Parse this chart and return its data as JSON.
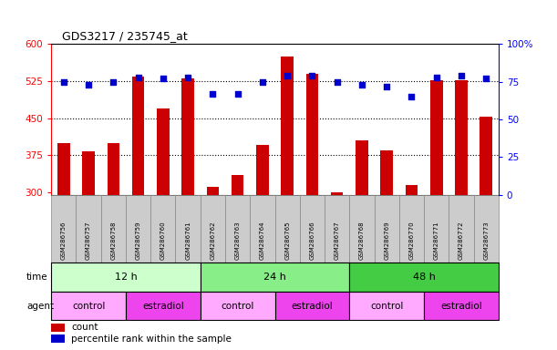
{
  "title": "GDS3217 / 235745_at",
  "samples": [
    "GSM286756",
    "GSM286757",
    "GSM286758",
    "GSM286759",
    "GSM286760",
    "GSM286761",
    "GSM286762",
    "GSM286763",
    "GSM286764",
    "GSM286765",
    "GSM286766",
    "GSM286767",
    "GSM286768",
    "GSM286769",
    "GSM286770",
    "GSM286771",
    "GSM286772",
    "GSM286773"
  ],
  "counts": [
    400,
    382,
    400,
    535,
    470,
    530,
    310,
    335,
    395,
    575,
    540,
    300,
    405,
    384,
    315,
    527,
    527,
    453
  ],
  "percentiles": [
    75,
    73,
    75,
    78,
    77,
    78,
    67,
    67,
    75,
    79,
    79,
    75,
    73,
    72,
    65,
    78,
    79,
    77
  ],
  "ylim_left": [
    295,
    600
  ],
  "ylim_right": [
    0,
    100
  ],
  "yticks_left": [
    300,
    375,
    450,
    525,
    600
  ],
  "yticks_right": [
    0,
    25,
    50,
    75,
    100
  ],
  "ytick_labels_right": [
    "0",
    "25",
    "50",
    "75",
    "100%"
  ],
  "bar_color": "#cc0000",
  "dot_color": "#0000cc",
  "time_groups": [
    {
      "label": "12 h",
      "start": 0,
      "end": 6,
      "color": "#ccffcc"
    },
    {
      "label": "24 h",
      "start": 6,
      "end": 12,
      "color": "#88ee88"
    },
    {
      "label": "48 h",
      "start": 12,
      "end": 18,
      "color": "#44cc44"
    }
  ],
  "agent_groups": [
    {
      "label": "control",
      "start": 0,
      "end": 3,
      "color": "#ffaaff"
    },
    {
      "label": "estradiol",
      "start": 3,
      "end": 6,
      "color": "#ee44ee"
    },
    {
      "label": "control",
      "start": 6,
      "end": 9,
      "color": "#ffaaff"
    },
    {
      "label": "estradiol",
      "start": 9,
      "end": 12,
      "color": "#ee44ee"
    },
    {
      "label": "control",
      "start": 12,
      "end": 15,
      "color": "#ffaaff"
    },
    {
      "label": "estradiol",
      "start": 15,
      "end": 18,
      "color": "#ee44ee"
    }
  ],
  "legend_count_label": "count",
  "legend_pct_label": "percentile rank within the sample",
  "time_label": "time",
  "agent_label": "agent",
  "sample_box_color": "#cccccc",
  "bg_color": "#ffffff",
  "grid_dotted_at": [
    375,
    450,
    525
  ]
}
